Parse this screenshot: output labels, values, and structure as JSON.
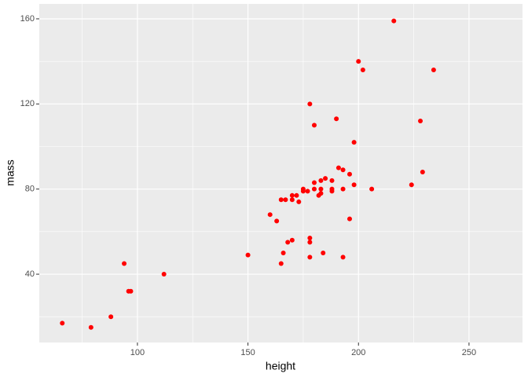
{
  "chart_data": {
    "type": "scatter",
    "x_label": "height",
    "y_label": "mass",
    "xlim": [
      55.6,
      274.2
    ],
    "ylim": [
      7.9,
      167.0
    ],
    "xticks": [
      100,
      150,
      200,
      250
    ],
    "yticks": [
      40,
      80,
      120,
      160
    ],
    "x_minor_grid": [
      75,
      125,
      175,
      225
    ],
    "y_minor_grid": [
      20,
      60,
      100,
      140
    ],
    "grid": true,
    "panel_color": "#ebebeb",
    "series": [
      {
        "name": "mass",
        "color": "#ff0000",
        "x": [
          66,
          79,
          88,
          94,
          96,
          97,
          112,
          150,
          160,
          163,
          165,
          165,
          166,
          167,
          168,
          170,
          170,
          170,
          172,
          173,
          175,
          175,
          177,
          178,
          178,
          178,
          178,
          180,
          180,
          180,
          182,
          183,
          183,
          183,
          184,
          185,
          188,
          188,
          188,
          190,
          191,
          193,
          193,
          193,
          196,
          196,
          198,
          198,
          200,
          202,
          206,
          216,
          224,
          228,
          229,
          234
        ],
        "values": [
          17,
          15,
          20,
          45,
          32,
          32,
          40,
          49,
          68,
          65,
          75,
          45,
          50,
          75,
          55,
          77,
          75,
          56,
          77,
          74,
          80,
          79,
          79,
          120,
          57,
          55,
          48,
          110,
          83,
          80,
          77,
          78,
          84,
          80,
          50,
          85,
          84,
          80,
          79,
          113,
          90,
          89,
          80,
          48,
          87,
          66,
          102,
          82,
          140,
          136,
          80,
          159,
          82,
          112,
          88,
          136
        ]
      }
    ]
  }
}
